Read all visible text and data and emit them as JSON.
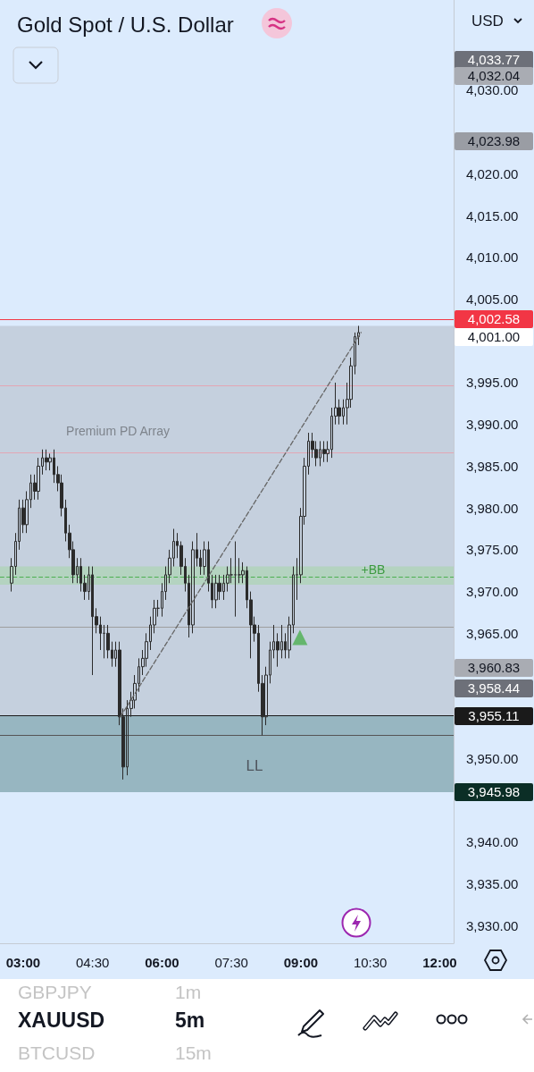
{
  "chart_data": {
    "type": "candlestick",
    "title": "Gold Spot / U.S. Dollar",
    "color": "#2b2b2b",
    "x": [
      2.75,
      2.833,
      2.917,
      3,
      3.083,
      3.167,
      3.25,
      3.333,
      3.417,
      3.5,
      3.583,
      3.667,
      3.75,
      3.833,
      3.917,
      4,
      4.083,
      4.167,
      4.25,
      4.333,
      4.417,
      4.5,
      4.583,
      4.667,
      4.75,
      4.833,
      4.917,
      5,
      5.083,
      5.167,
      5.25,
      5.333,
      5.417,
      5.5,
      5.583,
      5.667,
      5.75,
      5.833,
      5.917,
      6,
      6.083,
      6.167,
      6.25,
      6.333,
      6.417,
      6.5,
      6.583,
      6.667,
      6.75,
      6.833,
      6.917,
      7,
      7.083,
      7.167,
      7.25,
      7.333,
      7.417,
      7.5,
      7.583,
      7.667,
      7.75,
      7.833,
      7.917,
      8,
      8.083,
      8.167,
      8.25,
      8.333,
      8.417,
      8.5,
      8.583,
      8.667,
      8.75,
      8.833,
      8.917,
      9,
      9.083,
      9.167,
      9.25,
      9.333,
      9.417,
      9.5,
      9.583,
      9.667,
      9.75,
      9.833,
      9.917,
      10,
      10.083,
      10.167,
      10.25
    ],
    "ohlc": [
      [
        3971,
        3974,
        3970,
        3973
      ],
      [
        3973,
        3977,
        3972,
        3976
      ],
      [
        3976,
        3981,
        3975,
        3980
      ],
      [
        3980,
        3981,
        3977,
        3978
      ],
      [
        3978,
        3982,
        3977,
        3981
      ],
      [
        3981,
        3984,
        3980,
        3983
      ],
      [
        3983,
        3984,
        3981,
        3982
      ],
      [
        3982,
        3986,
        3981,
        3985
      ],
      [
        3985,
        3987,
        3984,
        3986
      ],
      [
        3986,
        3987,
        3984.5,
        3985.5
      ],
      [
        3985.5,
        3986.5,
        3984.5,
        3986
      ],
      [
        3986,
        3987,
        3983,
        3984
      ],
      [
        3984,
        3985,
        3982,
        3983
      ],
      [
        3983,
        3984,
        3979,
        3980
      ],
      [
        3980,
        3981,
        3976,
        3977
      ],
      [
        3977,
        3978,
        3974,
        3975
      ],
      [
        3975,
        3976,
        3971,
        3972
      ],
      [
        3972,
        3974,
        3971,
        3973
      ],
      [
        3973,
        3974,
        3970,
        3971
      ],
      [
        3971,
        3972,
        3969,
        3970
      ],
      [
        3970,
        3973,
        3969,
        3972
      ],
      [
        3972,
        3973,
        3960,
        3967
      ],
      [
        3967,
        3968,
        3965,
        3966
      ],
      [
        3966,
        3967,
        3963,
        3965
      ],
      [
        3965,
        3966,
        3962,
        3965
      ],
      [
        3965,
        3966,
        3962,
        3963
      ],
      [
        3963,
        3964,
        3961,
        3962
      ],
      [
        3962,
        3964,
        3961,
        3963
      ],
      [
        3963,
        3964,
        3954,
        3955
      ],
      [
        3955,
        3956,
        3947.5,
        3949
      ],
      [
        3949,
        3957,
        3948,
        3956
      ],
      [
        3956,
        3958,
        3955,
        3957
      ],
      [
        3957,
        3960,
        3956,
        3959
      ],
      [
        3959,
        3962,
        3958,
        3961
      ],
      [
        3961,
        3963,
        3960,
        3962
      ],
      [
        3962,
        3965,
        3961,
        3964
      ],
      [
        3964,
        3967,
        3963,
        3966
      ],
      [
        3966,
        3969,
        3965,
        3968
      ],
      [
        3968,
        3969,
        3967,
        3968
      ],
      [
        3968,
        3971,
        3967,
        3970
      ],
      [
        3970,
        3973,
        3969,
        3972
      ],
      [
        3972,
        3975,
        3971,
        3974
      ],
      [
        3974,
        3977.5,
        3973,
        3976
      ],
      [
        3976,
        3977,
        3974,
        3975.5
      ],
      [
        3975.5,
        3976,
        3972,
        3973
      ],
      [
        3973,
        3974,
        3970,
        3971
      ],
      [
        3971,
        3972,
        3964.5,
        3966
      ],
      [
        3966,
        3976,
        3965,
        3975
      ],
      [
        3975,
        3977,
        3973,
        3974
      ],
      [
        3974,
        3975,
        3972,
        3973
      ],
      [
        3973,
        3976,
        3972,
        3975
      ],
      [
        3975,
        3976,
        3970,
        3971
      ],
      [
        3971,
        3972,
        3968,
        3969
      ],
      [
        3969,
        3972,
        3968,
        3971
      ],
      [
        3971,
        3972,
        3969,
        3970
      ],
      [
        3970,
        3972,
        3969,
        3971
      ],
      [
        3971,
        3973,
        3970,
        3972
      ],
      [
        3972,
        3974,
        3971,
        3972
      ],
      [
        3972,
        3976,
        3967,
        3972
      ],
      [
        3972,
        3974,
        3971,
        3972
      ],
      [
        3972,
        3973.5,
        3971,
        3972.5
      ],
      [
        3972.5,
        3973,
        3968,
        3969
      ],
      [
        3969,
        3970,
        3962,
        3966
      ],
      [
        3966,
        3967,
        3964,
        3965
      ],
      [
        3965,
        3966,
        3958,
        3959
      ],
      [
        3959,
        3960,
        3952.8,
        3955
      ],
      [
        3955,
        3961,
        3954,
        3960
      ],
      [
        3960,
        3964,
        3959,
        3963
      ],
      [
        3963,
        3966,
        3962,
        3964
      ],
      [
        3964,
        3965,
        3961,
        3963
      ],
      [
        3963,
        3966,
        3962,
        3964
      ],
      [
        3964,
        3965,
        3962,
        3963
      ],
      [
        3963,
        3967,
        3962,
        3966
      ],
      [
        3966,
        3973,
        3965,
        3972
      ],
      [
        3972,
        3974,
        3969,
        3972
      ],
      [
        3972,
        3980,
        3971,
        3979
      ],
      [
        3979,
        3986,
        3978,
        3985
      ],
      [
        3985,
        3989,
        3984,
        3988
      ],
      [
        3988,
        3989,
        3986,
        3987
      ],
      [
        3987,
        3988,
        3985,
        3986
      ],
      [
        3986,
        3988,
        3985,
        3987
      ],
      [
        3987,
        3988,
        3985.5,
        3986.5
      ],
      [
        3986.5,
        3988,
        3985.5,
        3987
      ],
      [
        3987,
        3992,
        3986,
        3991
      ],
      [
        3991,
        3995,
        3990,
        3992
      ],
      [
        3992,
        3993,
        3990,
        3991
      ],
      [
        3991,
        3993,
        3990,
        3992
      ],
      [
        3992,
        3995,
        3990,
        3993
      ],
      [
        3993,
        3998,
        3992,
        3997
      ],
      [
        3997,
        4001,
        3996,
        4000.5
      ],
      [
        4000.5,
        4001.8,
        3999.5,
        4001
      ]
    ],
    "series": [
      {
        "type": "line",
        "x": [
          5.1,
          10.3
        ],
        "values": [
          3955,
          4001
        ],
        "color": "#666666",
        "line_style": "dashed",
        "marker": "none"
      },
      {
        "type": "scatter",
        "x": [
          8.98
        ],
        "values": [
          3964.5
        ],
        "color": "#4caf50",
        "marker": "triangle"
      }
    ],
    "xlim": [
      2.5,
      12.3
    ],
    "xticks": [
      {
        "value": 3,
        "label": "03:00"
      },
      {
        "value": 4.5,
        "label": "04:30"
      },
      {
        "value": 6,
        "label": "06:00"
      },
      {
        "value": 7.5,
        "label": "07:30"
      },
      {
        "value": 9,
        "label": "09:00"
      },
      {
        "value": 10.5,
        "label": "10:30"
      },
      {
        "value": 12,
        "label": "12:00"
      }
    ],
    "ylim": [
      3927.9,
      4040.8
    ],
    "yticks": [
      {
        "value": 3930,
        "label": "3,930.00"
      },
      {
        "value": 3935,
        "label": "3,935.00"
      },
      {
        "value": 3940,
        "label": "3,940.00"
      },
      {
        "value": 3950,
        "label": "3,950.00"
      },
      {
        "value": 3965,
        "label": "3,965.00"
      },
      {
        "value": 3970,
        "label": "3,970.00"
      },
      {
        "value": 3975,
        "label": "3,975.00"
      },
      {
        "value": 3980,
        "label": "3,980.00"
      },
      {
        "value": 3985,
        "label": "3,985.00"
      },
      {
        "value": 3990,
        "label": "3,990.00"
      },
      {
        "value": 3995,
        "label": "3,995.00"
      },
      {
        "value": 4005,
        "label": "4,005.00"
      },
      {
        "value": 4010,
        "label": "4,010.00"
      },
      {
        "value": 4015,
        "label": "4,015.00"
      },
      {
        "value": 4020,
        "label": "4,020.00"
      },
      {
        "value": 4030,
        "label": "4,030.00"
      }
    ],
    "grid": false,
    "ref_lines": [
      {
        "axis": "y",
        "value": 4002.58,
        "label": "4,002.58",
        "color": "#f23645"
      },
      {
        "axis": "y",
        "value": 3994.7,
        "color": "#e3a6b4"
      },
      {
        "axis": "y",
        "value": 3986.6,
        "color": "#e3a6b4"
      },
      {
        "axis": "y",
        "value": 3965.8,
        "color": "#9e9e9e"
      },
      {
        "axis": "y",
        "value": 3971.7,
        "color": "#4caf50",
        "line_style": "dashed"
      },
      {
        "axis": "y",
        "value": 3955.11,
        "label": "3,955.11",
        "color": "#1a1a1a"
      },
      {
        "axis": "y",
        "value": 3952.8,
        "color": "#555555"
      }
    ],
    "bands": [
      {
        "axis": "y",
        "from": 3955.11,
        "to": 4001.8,
        "color": "#b3bac4"
      },
      {
        "axis": "y",
        "from": 3970.8,
        "to": 3973,
        "color": "#a5d6a7"
      },
      {
        "axis": "y",
        "from": 3945.98,
        "to": 3955.11,
        "label": "3,945.98",
        "color": "#5f8a90"
      }
    ],
    "annotations": [
      "Premium PD Array",
      "+BB",
      "LL",
      "4,033.77",
      "4,032.04",
      "4,023.98",
      "4,001.00",
      "3,960.83",
      "3,958.44",
      "USD",
      "GBPJPY",
      "1m",
      "XAUUSD",
      "5m",
      "BTCUSD",
      "15m"
    ]
  }
}
